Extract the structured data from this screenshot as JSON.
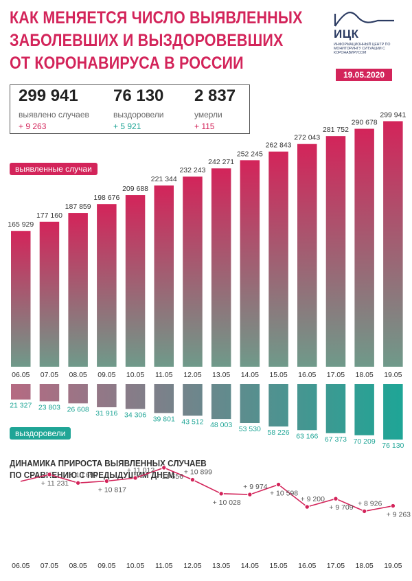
{
  "header": {
    "title_lines": [
      "КАК МЕНЯЕТСЯ ЧИСЛО ВЫЯВЛЕННЫХ",
      "ЗАБОЛЕВШИХ И ВЫЗДОРОВЕВШИХ",
      "ОТ КОРОНАВИРУСА В РОССИИ"
    ],
    "logo_name": "ИЦК",
    "logo_subtitle": "ИНФОРМАЦИОННЫЙ ЦЕНТР ПО МОНИТОРИНГУ СИТУАЦИИ С КОРОНАВИРУСОМ",
    "date": "19.05.2020"
  },
  "summary": {
    "cases": {
      "value": "299 941",
      "label": "выявлено случаев",
      "delta": "+ 9 263"
    },
    "recovered": {
      "value": "76 130",
      "label": "выздоровели",
      "delta": "+ 5 921"
    },
    "deaths": {
      "value": "2 837",
      "label": "умерли",
      "delta": "+ 115"
    }
  },
  "labels": {
    "cases_series": "выявленные случаи",
    "recovered_series": "выздоровели",
    "dynamics_title_lines": [
      "ДИНАМИКА ПРИРОСТА ВЫЯВЛЕННЫХ СЛУЧАЕВ",
      "ПО СРАВНЕНИЮ С ПРЕДЫДУЩИМ ДНЕМ"
    ]
  },
  "colors": {
    "accent": "#d3245a",
    "cases_gradient_top": "#d3245a",
    "cases_gradient_bottom": "#6f9a8a",
    "recovered_gradient_left": "#b56a82",
    "recovered_gradient_right": "#1fa596",
    "delta_green": "#1fa596",
    "line": "#d3245a"
  },
  "chart_data": [
    {
      "type": "bar",
      "categories": [
        "06.05",
        "07.05",
        "08.05",
        "09.05",
        "10.05",
        "11.05",
        "12.05",
        "13.05",
        "14.05",
        "15.05",
        "16.05",
        "17.05",
        "18.05",
        "19.05"
      ],
      "series": [
        {
          "name": "выявленные случаи",
          "values": [
            165929,
            177160,
            187859,
            198676,
            209688,
            221344,
            232243,
            242271,
            252245,
            262843,
            272043,
            281752,
            290678,
            299941
          ],
          "labels": [
            "165 929",
            "177 160",
            "187 859",
            "198 676",
            "209 688",
            "221 344",
            "232 243",
            "242 271",
            "252 245",
            "262 843",
            "272 043",
            "281 752",
            "290 678",
            "299 941"
          ]
        },
        {
          "name": "выздоровели",
          "values": [
            21327,
            23803,
            26608,
            31916,
            34306,
            39801,
            43512,
            48003,
            53530,
            58226,
            63166,
            67373,
            70209,
            76130
          ],
          "labels": [
            "21 327",
            "23 803",
            "26 608",
            "31 916",
            "34 306",
            "39 801",
            "43 512",
            "48 003",
            "53 530",
            "58 226",
            "63 166",
            "67 373",
            "70 209",
            "76 130"
          ]
        }
      ]
    },
    {
      "type": "line",
      "categories": [
        "06.05",
        "07.05",
        "08.05",
        "09.05",
        "10.05",
        "11.05",
        "12.05",
        "13.05",
        "14.05",
        "15.05",
        "16.05",
        "17.05",
        "18.05",
        "19.05"
      ],
      "values": [
        null,
        11231,
        10699,
        10817,
        11012,
        11656,
        10899,
        10028,
        9974,
        10598,
        9200,
        9709,
        8926,
        9263
      ],
      "labels": [
        "",
        "+ 11 231",
        "+ 10 699",
        "+ 10 817",
        "+ 11 012",
        "+ 11 656",
        "+ 10 899",
        "+ 10 028",
        "+ 9 974",
        "+ 10 598",
        "+ 9 200",
        "+ 9 709",
        "+ 8 926",
        "+ 9 263"
      ]
    }
  ]
}
